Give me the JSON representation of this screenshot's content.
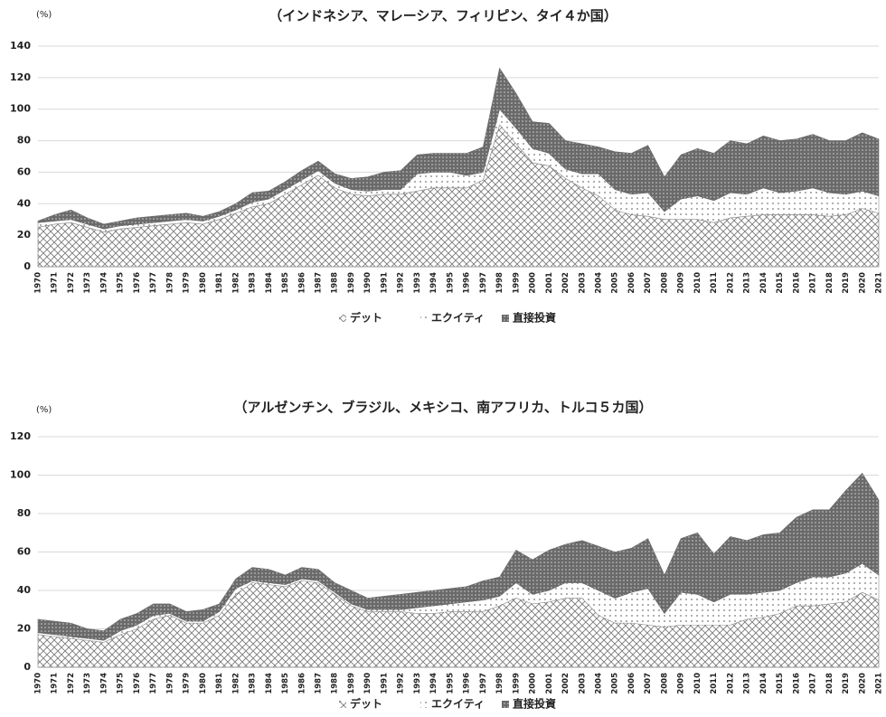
{
  "chart_data": [
    {
      "type": "area",
      "stacked": true,
      "title": "（インドネシア、マレーシア、フィリピン、タイ４か国）",
      "y_label": "(%)",
      "categories": [
        "1970",
        "1971",
        "1972",
        "1973",
        "1974",
        "1975",
        "1976",
        "1977",
        "1978",
        "1979",
        "1980",
        "1981",
        "1982",
        "1983",
        "1984",
        "1985",
        "1986",
        "1987",
        "1988",
        "1989",
        "1990",
        "1991",
        "1992",
        "1993",
        "1994",
        "1995",
        "1996",
        "1997",
        "1998",
        "1999",
        "2000",
        "2001",
        "2002",
        "2003",
        "2004",
        "2005",
        "2006",
        "2007",
        "2008",
        "2009",
        "2010",
        "2011",
        "2012",
        "2013",
        "2014",
        "2015",
        "2016",
        "2017",
        "2018",
        "2019",
        "2020",
        "2021"
      ],
      "series": [
        {
          "name": "デット",
          "color": "#707070",
          "pattern": "crosshatch",
          "values": [
            25,
            27,
            28,
            25,
            22,
            24,
            25,
            26,
            27,
            28,
            27,
            30,
            34,
            38,
            40,
            46,
            52,
            58,
            50,
            46,
            45,
            46,
            46,
            48,
            50,
            50,
            50,
            55,
            90,
            78,
            66,
            64,
            56,
            50,
            45,
            36,
            33,
            32,
            30,
            30,
            30,
            28,
            31,
            32,
            33,
            33,
            33,
            33,
            32,
            33,
            37,
            34
          ]
        },
        {
          "name": "エクイティ",
          "color": "#909090",
          "pattern": "dots",
          "values": [
            3,
            2,
            2,
            2,
            2,
            2,
            2,
            2,
            2,
            2,
            2,
            2,
            2,
            3,
            3,
            3,
            3,
            3,
            3,
            3,
            3,
            3,
            3,
            11,
            10,
            10,
            8,
            5,
            10,
            10,
            9,
            8,
            6,
            9,
            14,
            13,
            13,
            15,
            5,
            13,
            15,
            14,
            16,
            14,
            17,
            14,
            15,
            17,
            15,
            13,
            11,
            11
          ]
        },
        {
          "name": "直接投資",
          "color": "#6a6a6a",
          "pattern": "dense",
          "values": [
            1,
            4,
            6,
            4,
            3,
            3,
            4,
            4,
            4,
            4,
            3,
            3,
            4,
            6,
            5,
            5,
            6,
            6,
            6,
            7,
            9,
            11,
            12,
            12,
            12,
            12,
            14,
            16,
            26,
            22,
            17,
            19,
            18,
            19,
            17,
            24,
            26,
            30,
            22,
            28,
            30,
            30,
            33,
            32,
            33,
            33,
            33,
            34,
            33,
            34,
            37,
            36
          ]
        }
      ],
      "ylim": [
        0,
        140
      ],
      "yticks": [
        0,
        20,
        40,
        60,
        80,
        100,
        120,
        140
      ],
      "grid": true,
      "legend": "bottom"
    },
    {
      "type": "area",
      "stacked": true,
      "title": "（アルゼンチン、ブラジル、メキシコ、南アフリカ、トルコ５カ国）",
      "y_label": "(%)",
      "categories": [
        "1970",
        "1971",
        "1972",
        "1973",
        "1974",
        "1975",
        "1976",
        "1977",
        "1978",
        "1979",
        "1980",
        "1981",
        "1982",
        "1983",
        "1984",
        "1985",
        "1986",
        "1987",
        "1988",
        "1989",
        "1990",
        "1991",
        "1992",
        "1993",
        "1994",
        "1995",
        "1996",
        "1997",
        "1998",
        "1999",
        "2000",
        "2001",
        "2002",
        "2003",
        "2004",
        "2005",
        "2006",
        "2007",
        "2008",
        "2009",
        "2010",
        "2011",
        "2012",
        "2013",
        "2014",
        "2015",
        "2016",
        "2017",
        "2018",
        "2019",
        "2020",
        "2021"
      ],
      "series": [
        {
          "name": "デット",
          "color": "#707070",
          "pattern": "crosshatch",
          "values": [
            17,
            16,
            15,
            14,
            13,
            17,
            20,
            25,
            27,
            23,
            23,
            27,
            38,
            44,
            43,
            42,
            45,
            44,
            38,
            32,
            29,
            29,
            29,
            28,
            28,
            29,
            29,
            29,
            32,
            36,
            33,
            34,
            36,
            36,
            27,
            23,
            23,
            22,
            21,
            22,
            22,
            22,
            22,
            25,
            26,
            28,
            32,
            32,
            33,
            34,
            39,
            35
          ]
        },
        {
          "name": "エクイティ",
          "color": "#909090",
          "pattern": "dots",
          "values": [
            1,
            1,
            1,
            1,
            1,
            2,
            2,
            2,
            1,
            1,
            1,
            2,
            3,
            1,
            1,
            1,
            1,
            1,
            1,
            1,
            1,
            1,
            1,
            3,
            4,
            4,
            5,
            6,
            5,
            8,
            5,
            6,
            8,
            8,
            13,
            13,
            16,
            19,
            7,
            17,
            16,
            12,
            16,
            13,
            13,
            12,
            12,
            15,
            14,
            15,
            15,
            13
          ]
        },
        {
          "name": "直接投資",
          "color": "#6a6a6a",
          "pattern": "dense",
          "values": [
            7,
            7,
            7,
            5,
            5,
            6,
            6,
            6,
            5,
            5,
            6,
            4,
            5,
            7,
            7,
            5,
            6,
            6,
            5,
            7,
            6,
            7,
            8,
            8,
            8,
            8,
            8,
            10,
            10,
            17,
            18,
            21,
            20,
            22,
            23,
            24,
            23,
            26,
            20,
            28,
            32,
            25,
            30,
            28,
            30,
            30,
            34,
            35,
            35,
            43,
            47,
            39
          ]
        }
      ],
      "ylim": [
        0,
        120
      ],
      "yticks": [
        0,
        20,
        40,
        60,
        80,
        100,
        120
      ],
      "grid": true,
      "legend": "bottom"
    }
  ]
}
